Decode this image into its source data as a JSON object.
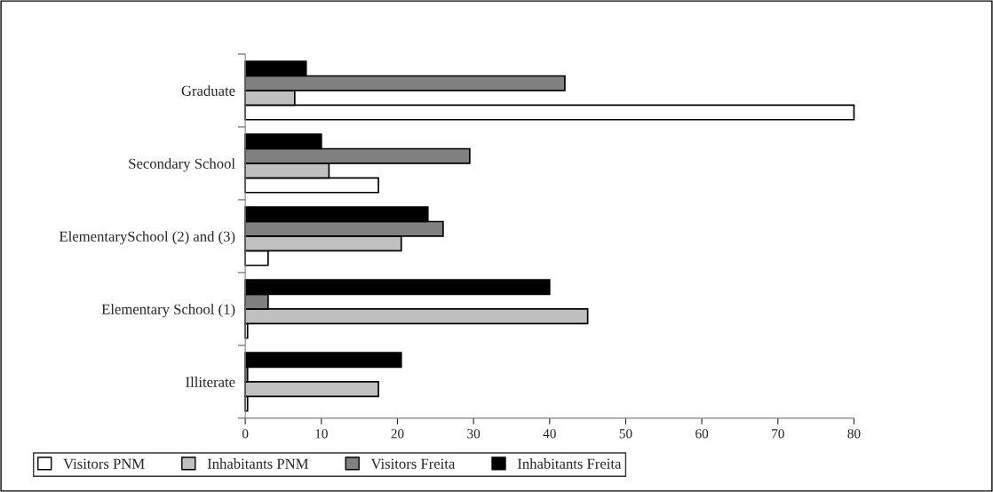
{
  "chart_data": {
    "type": "bar",
    "orientation": "horizontal",
    "categories": [
      "Graduate",
      "Secondary School",
      "ElementarySchool (2) and (3)",
      "Elementary School (1)",
      "Illiterate"
    ],
    "series": [
      {
        "name": "Visitors PNM",
        "color": "#ffffff",
        "values": [
          80,
          17.5,
          3,
          0.3,
          0.3
        ]
      },
      {
        "name": "Inhabitants PNM",
        "color": "#c0c0c0",
        "values": [
          6.5,
          11,
          20.5,
          45,
          17.5
        ]
      },
      {
        "name": "Visitors Freita",
        "color": "#808080",
        "values": [
          42,
          29.5,
          26,
          3,
          0.3
        ]
      },
      {
        "name": "Inhabitants Freita",
        "color": "#000000",
        "values": [
          8,
          10,
          24,
          40,
          20.5
        ]
      }
    ],
    "xlim": [
      0,
      80
    ],
    "xticks": [
      0,
      10,
      20,
      30,
      40,
      50,
      60,
      70,
      80
    ],
    "grid": false,
    "legend": "bottom"
  }
}
